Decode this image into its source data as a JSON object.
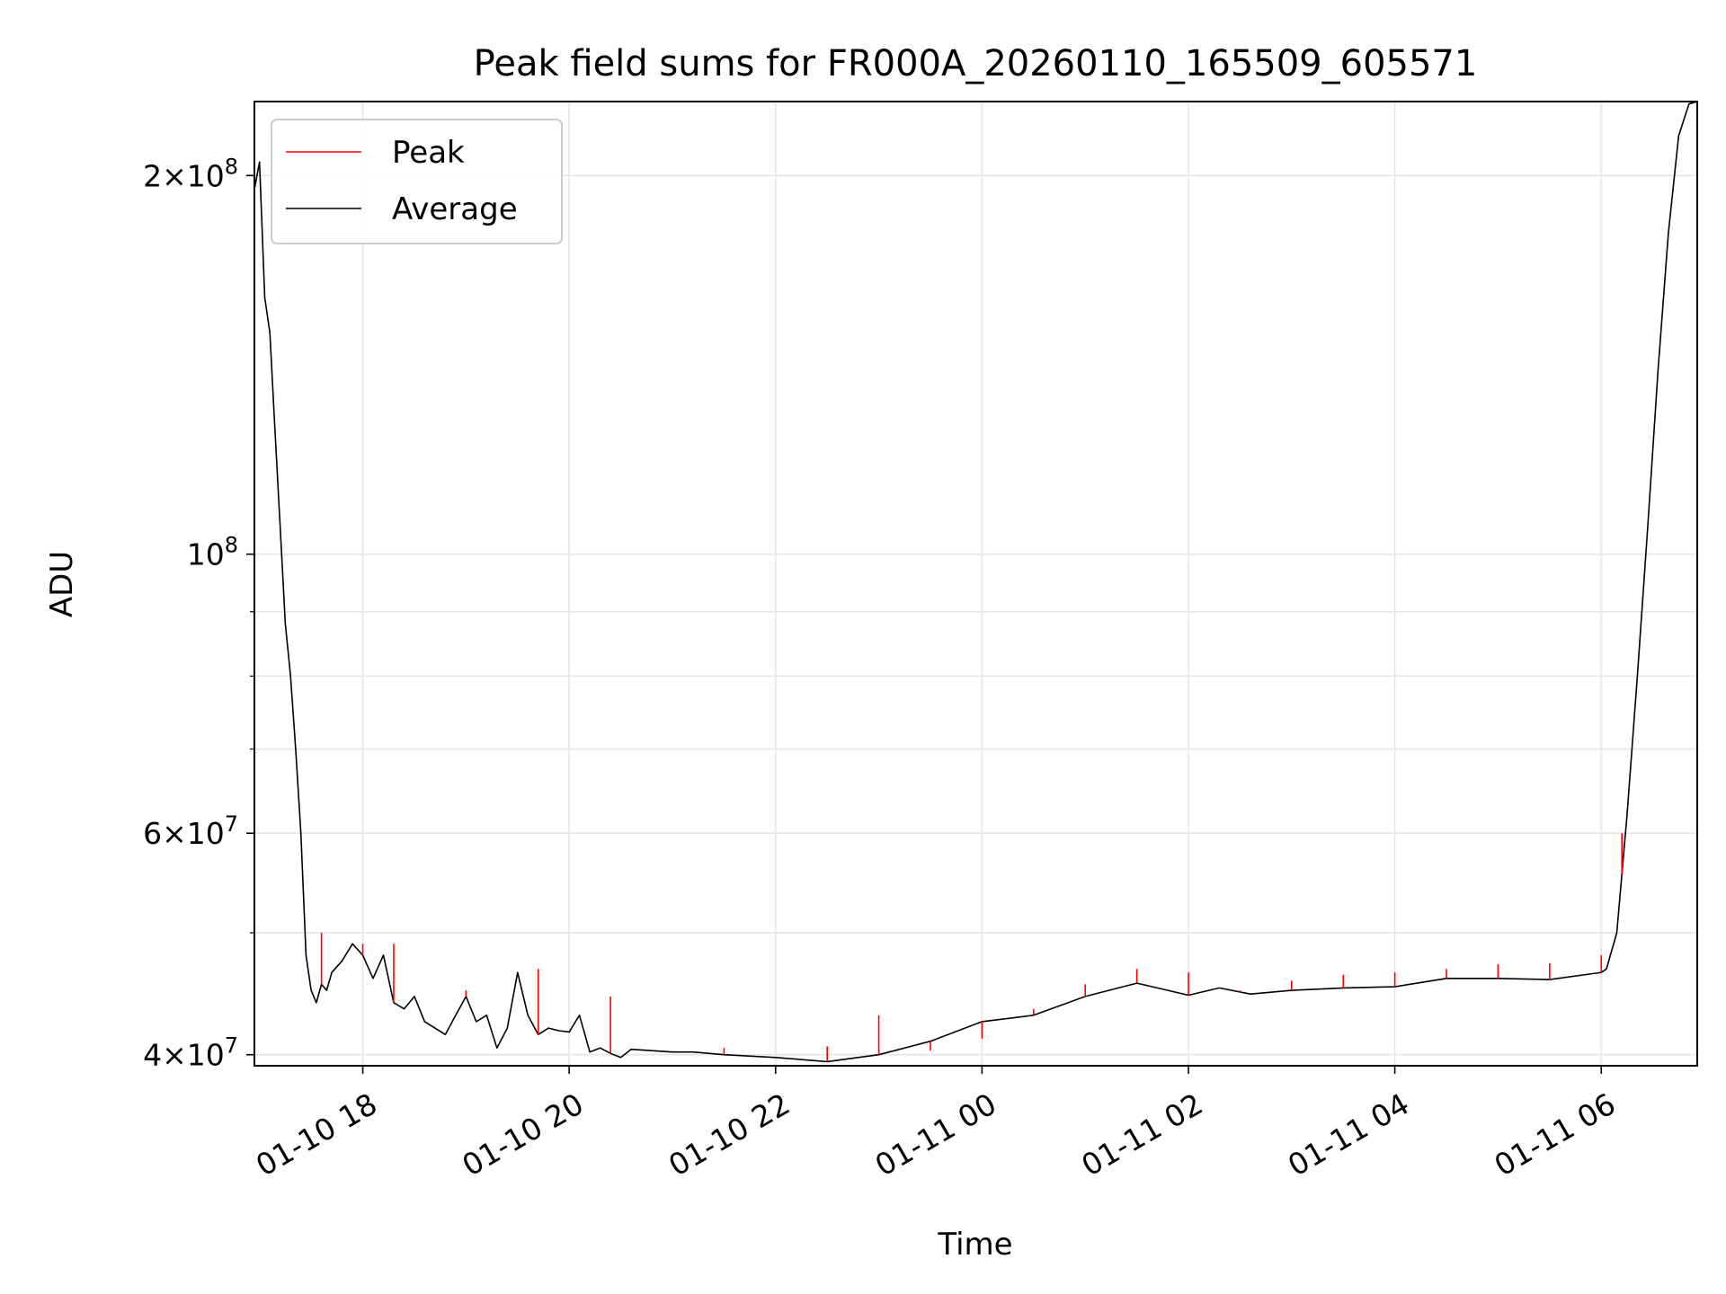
{
  "chart_data": {
    "type": "line",
    "title": "Peak field sums for FR000A_20260110_165509_605571",
    "xlabel": "Time",
    "ylabel": "ADU",
    "x_unit": "hours relative to 2026-01-10 00:00",
    "xlim": [
      16.95,
      30.93
    ],
    "ylim": [
      39200000,
      229000000
    ],
    "yscale": "log",
    "grid": true,
    "legend_position": "upper left",
    "x_ticks": [
      {
        "x": 18,
        "label": "01-10 18"
      },
      {
        "x": 20,
        "label": "01-10 20"
      },
      {
        "x": 22,
        "label": "01-10 22"
      },
      {
        "x": 24,
        "label": "01-11 00"
      },
      {
        "x": 26,
        "label": "01-11 02"
      },
      {
        "x": 28,
        "label": "01-11 04"
      },
      {
        "x": 30,
        "label": "01-11 06"
      }
    ],
    "y_major_ticks": [
      {
        "y": 40000000,
        "mant": "4",
        "exp": "7",
        "style": "times"
      },
      {
        "y": 60000000,
        "mant": "6",
        "exp": "7",
        "style": "times"
      },
      {
        "y": 100000000,
        "mant": "",
        "exp": "8",
        "style": "pow"
      },
      {
        "y": 200000000,
        "mant": "2",
        "exp": "8",
        "style": "times"
      }
    ],
    "y_minor_ticks": [
      50000000,
      70000000,
      80000000,
      90000000
    ],
    "series": [
      {
        "name": "Average",
        "color": "#000000",
        "x": [
          16.95,
          17.0,
          17.05,
          17.1,
          17.15,
          17.2,
          17.25,
          17.3,
          17.35,
          17.4,
          17.45,
          17.5,
          17.55,
          17.6,
          17.65,
          17.7,
          17.8,
          17.9,
          18.0,
          18.1,
          18.2,
          18.3,
          18.4,
          18.5,
          18.6,
          18.7,
          18.8,
          18.9,
          19.0,
          19.1,
          19.2,
          19.3,
          19.4,
          19.5,
          19.6,
          19.7,
          19.8,
          19.9,
          20.0,
          20.1,
          20.2,
          20.3,
          20.4,
          20.5,
          20.6,
          20.8,
          21.0,
          21.2,
          21.5,
          22.0,
          22.5,
          23.0,
          23.5,
          24.0,
          24.5,
          25.0,
          25.5,
          26.0,
          26.3,
          26.6,
          27.0,
          27.5,
          28.0,
          28.5,
          29.0,
          29.5,
          30.0,
          30.05,
          30.15,
          30.25,
          30.35,
          30.45,
          30.55,
          30.65,
          30.75,
          30.85,
          30.93
        ],
        "y": [
          195000000,
          205000000,
          160000000,
          150000000,
          125000000,
          105000000,
          88000000,
          80000000,
          70000000,
          60000000,
          48000000,
          45000000,
          44000000,
          45500000,
          45000000,
          46500000,
          47500000,
          49000000,
          48000000,
          46000000,
          48000000,
          44000000,
          43500000,
          44500000,
          42500000,
          42000000,
          41500000,
          43000000,
          44500000,
          42500000,
          43000000,
          40500000,
          42000000,
          46500000,
          43000000,
          41500000,
          42000000,
          41800000,
          41700000,
          43000000,
          40200000,
          40500000,
          40100000,
          39800000,
          40400000,
          40300000,
          40200000,
          40200000,
          40000000,
          39800000,
          39500000,
          40000000,
          41000000,
          42500000,
          43000000,
          44500000,
          45600000,
          44600000,
          45200000,
          44700000,
          45000000,
          45200000,
          45300000,
          46000000,
          46000000,
          45900000,
          46500000,
          46800000,
          50000000,
          62000000,
          80000000,
          105000000,
          140000000,
          180000000,
          215000000,
          228000000,
          229000000
        ]
      },
      {
        "name": "Peak",
        "color": "#ff0000",
        "x": [
          17.6,
          18.0,
          18.3,
          19.0,
          19.7,
          20.4,
          21.5,
          22.5,
          23.0,
          23.5,
          24.0,
          24.5,
          25.0,
          25.5,
          26.0,
          26.5,
          27.0,
          27.5,
          28.0,
          28.5,
          29.0,
          29.5,
          30.0,
          30.2
        ],
        "y": [
          50000000,
          49000000,
          49000000,
          45000000,
          46800000,
          44500000,
          40500000,
          40600000,
          43000000,
          40300000,
          41200000,
          43500000,
          45500000,
          46800000,
          46500000,
          45000000,
          45800000,
          46300000,
          46500000,
          46800000,
          47200000,
          47300000,
          48000000,
          60000000
        ]
      }
    ]
  }
}
